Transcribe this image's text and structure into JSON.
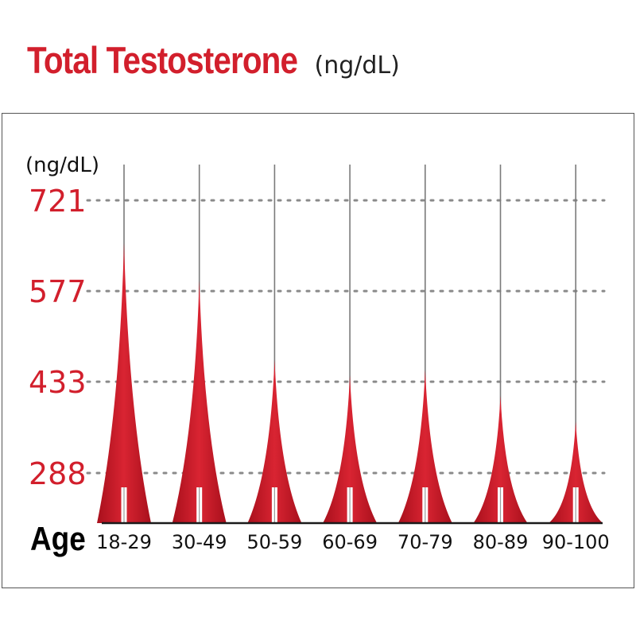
{
  "title": {
    "main": "Total Testosterone",
    "unit": "(ng/dL)"
  },
  "colors": {
    "accent": "#d21f2c",
    "spike_dark": "#b01a25",
    "grid": "#8a8a8a",
    "text": "#111111"
  },
  "chart_data": {
    "type": "bar",
    "title": "Total Testosterone (ng/dL)",
    "ylabel": "(ng/dL)",
    "xlabel": "Age",
    "categories": [
      "18-29",
      "30-49",
      "50-59",
      "60-69",
      "70-79",
      "80-89",
      "90-100"
    ],
    "values": [
      654,
      594,
      468,
      443,
      452,
      411,
      370
    ],
    "y_ticks": [
      "721",
      "577",
      "433",
      "288"
    ],
    "ylim": [
      175,
      776
    ],
    "grid": "horizontal-dotted",
    "legend": "none"
  }
}
